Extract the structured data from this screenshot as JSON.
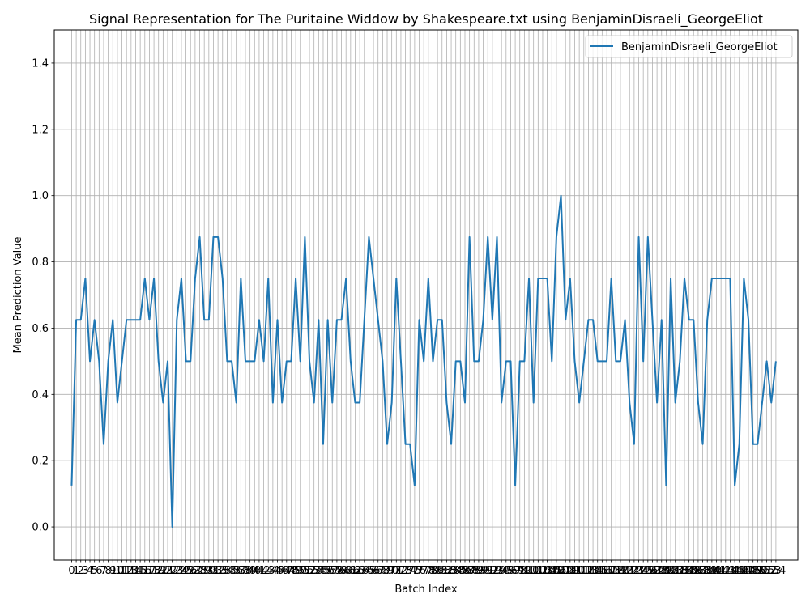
{
  "chart_data": {
    "type": "line",
    "title": "Signal Representation for The Puritaine Widdow by Shakespeare.txt using BenjaminDisraeli_GeorgeEliot",
    "xlabel": "Batch Index",
    "ylabel": "Mean Prediction Value",
    "xlim": [
      -3.8,
      158.8
    ],
    "ylim": [
      -0.1,
      1.5
    ],
    "y_ticks": [
      0.0,
      0.2,
      0.4,
      0.6,
      0.8,
      1.0,
      1.2,
      1.4
    ],
    "y_tick_labels": [
      "0.0",
      "0.2",
      "0.4",
      "0.6",
      "0.8",
      "1.0",
      "1.2",
      "1.4"
    ],
    "x_ticks_all_integers": true,
    "grid": true,
    "legend_position": "top-right",
    "color": "#1f77b4",
    "series": [
      {
        "name": "BenjaminDisraeli_GeorgeEliot",
        "values": [
          0.125,
          0.625,
          0.625,
          0.75,
          0.5,
          0.625,
          0.5,
          0.25,
          0.5,
          0.625,
          0.375,
          0.5,
          0.625,
          0.625,
          0.625,
          0.625,
          0.75,
          0.625,
          0.75,
          0.5,
          0.375,
          0.5,
          0.0,
          0.625,
          0.75,
          0.5,
          0.5,
          0.75,
          0.875,
          0.625,
          0.625,
          0.875,
          0.875,
          0.75,
          0.5,
          0.5,
          0.375,
          0.75,
          0.5,
          0.5,
          0.5,
          0.625,
          0.5,
          0.75,
          0.375,
          0.625,
          0.375,
          0.5,
          0.5,
          0.75,
          0.5,
          0.875,
          0.5,
          0.375,
          0.625,
          0.25,
          0.625,
          0.375,
          0.625,
          0.625,
          0.75,
          0.5,
          0.375,
          0.375,
          0.625,
          0.875,
          0.75,
          0.625,
          0.5,
          0.25,
          0.375,
          0.75,
          0.5,
          0.25,
          0.25,
          0.125,
          0.625,
          0.5,
          0.75,
          0.5,
          0.625,
          0.625,
          0.375,
          0.25,
          0.5,
          0.5,
          0.375,
          0.875,
          0.5,
          0.5,
          0.625,
          0.875,
          0.625,
          0.875,
          0.375,
          0.5,
          0.5,
          0.125,
          0.5,
          0.5,
          0.75,
          0.375,
          0.75,
          0.75,
          0.75,
          0.5,
          0.875,
          1.0,
          0.625,
          0.75,
          0.5,
          0.375,
          0.5,
          0.625,
          0.625,
          0.5,
          0.5,
          0.5,
          0.75,
          0.5,
          0.5,
          0.625,
          0.375,
          0.25,
          0.875,
          0.5,
          0.875,
          0.625,
          0.375,
          0.625,
          0.125,
          0.75,
          0.375,
          0.5,
          0.75,
          0.625,
          0.625,
          0.375,
          0.25,
          0.625,
          0.75,
          0.75,
          0.75,
          0.75,
          0.75,
          0.125,
          0.25,
          0.75,
          0.625,
          0.25,
          0.25,
          0.375,
          0.5,
          0.375,
          0.5
        ]
      }
    ]
  }
}
